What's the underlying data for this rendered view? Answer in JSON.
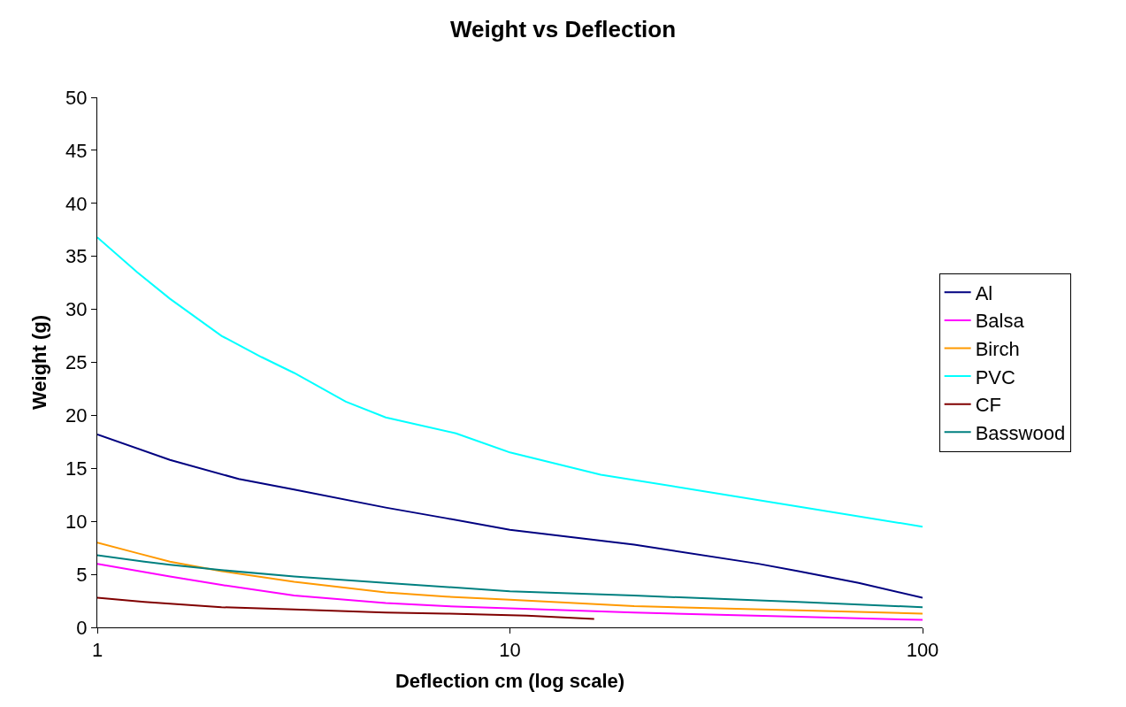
{
  "chart_data": {
    "type": "line",
    "title": "Weight vs Deflection",
    "xlabel": "Deflection cm (log scale)",
    "ylabel": "Weight (g)",
    "log": "x",
    "xlim": [
      1,
      100
    ],
    "xticks": [
      1,
      10,
      100
    ],
    "ylim": [
      0,
      50
    ],
    "yticks": [
      0,
      5,
      10,
      15,
      20,
      25,
      30,
      35,
      40,
      45,
      50
    ],
    "legend": "right",
    "marker": "none",
    "line_style": "solid",
    "series": [
      {
        "name": "Al",
        "color": "#000080",
        "x": [
          1,
          1.5,
          2.2,
          3,
          5,
          7,
          10,
          20,
          40,
          50,
          70,
          100
        ],
        "values": [
          18.2,
          15.8,
          14,
          13,
          11.3,
          10.3,
          9.2,
          7.8,
          6,
          5.3,
          4.2,
          2.8
        ]
      },
      {
        "name": "Balsa",
        "color": "#ff00ff",
        "x": [
          1,
          1.5,
          2,
          3,
          5,
          7,
          10,
          20,
          50,
          100
        ],
        "values": [
          6,
          4.8,
          4,
          3,
          2.3,
          2,
          1.8,
          1.4,
          1,
          0.7
        ]
      },
      {
        "name": "Birch",
        "color": "#ff9900",
        "x": [
          1,
          1.25,
          1.5,
          2,
          3,
          5,
          7,
          10,
          20,
          50,
          100
        ],
        "values": [
          8,
          7,
          6.2,
          5.3,
          4.3,
          3.3,
          2.9,
          2.6,
          2,
          1.6,
          1.3
        ]
      },
      {
        "name": "PVC",
        "color": "#00ffff",
        "x": [
          1,
          1.25,
          1.5,
          2,
          2.5,
          3,
          4,
          5,
          7.4,
          10,
          16.6,
          30,
          50,
          100
        ],
        "values": [
          36.8,
          33.5,
          31,
          27.5,
          25.5,
          24,
          21.3,
          19.8,
          18.3,
          16.5,
          14.4,
          12.8,
          11.4,
          9.5
        ]
      },
      {
        "name": "CF",
        "color": "#800000",
        "x": [
          1,
          1.3,
          2,
          3,
          5,
          7,
          11,
          16
        ],
        "values": [
          2.8,
          2.4,
          1.9,
          1.7,
          1.4,
          1.3,
          1.1,
          0.8
        ]
      },
      {
        "name": "Basswood",
        "color": "#008080",
        "x": [
          1,
          1.3,
          1.5,
          2,
          3,
          5,
          10,
          20,
          50,
          100
        ],
        "values": [
          6.8,
          6.2,
          5.9,
          5.4,
          4.8,
          4.2,
          3.4,
          3,
          2.4,
          1.9
        ]
      }
    ]
  }
}
